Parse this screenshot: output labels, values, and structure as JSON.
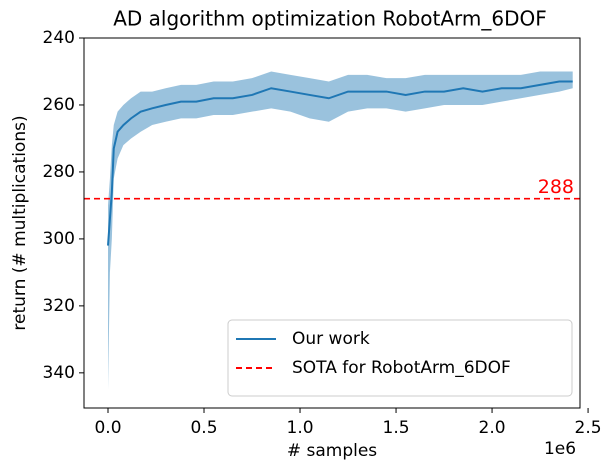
{
  "chart_data": {
    "type": "line",
    "title": "AD algorithm optimization RobotArm_6DOF",
    "xlabel": "# samples",
    "ylabel": "return (# multiplications)",
    "x_offset_label": "1e6",
    "x": [
      0,
      10000,
      20000,
      30000,
      50000,
      80000,
      120000,
      170000,
      230000,
      300000,
      380000,
      460000,
      550000,
      650000,
      750000,
      850000,
      950000,
      1050000,
      1150000,
      1250000,
      1350000,
      1450000,
      1550000,
      1650000,
      1750000,
      1850000,
      1950000,
      2050000,
      2150000,
      2250000,
      2350000,
      2420000
    ],
    "series": [
      {
        "name": "Our work",
        "color": "#1f77b4",
        "values": [
          302,
          294,
          286,
          273,
          268,
          266,
          264,
          262,
          261,
          260,
          259,
          259,
          258,
          258,
          257,
          255,
          256,
          257,
          258,
          256,
          256,
          256,
          257,
          256,
          256,
          255,
          256,
          255,
          255,
          254,
          253,
          253
        ],
        "band_lower": [
          345,
          310,
          300,
          282,
          276,
          272,
          270,
          268,
          266,
          265,
          264,
          264,
          263,
          263,
          262,
          261,
          262,
          264,
          265,
          262,
          261,
          261,
          262,
          261,
          260,
          260,
          260,
          259,
          258,
          257,
          256,
          255
        ],
        "band_upper": [
          290,
          282,
          272,
          266,
          262,
          260,
          258,
          256,
          256,
          255,
          254,
          254,
          253,
          253,
          252,
          250,
          251,
          252,
          253,
          251,
          251,
          252,
          252,
          251,
          251,
          251,
          251,
          251,
          251,
          250,
          250,
          250
        ]
      }
    ],
    "hlines": [
      {
        "name": "SOTA for RobotArm_6DOF",
        "value": 288,
        "color": "#ff0000",
        "dash": "6,4"
      }
    ],
    "xlim": [
      -125000,
      2458000
    ],
    "xticks": [
      {
        "value": 0,
        "label": "0.0"
      },
      {
        "value": 500000,
        "label": "0.5"
      },
      {
        "value": 1000000,
        "label": "1.0"
      },
      {
        "value": 1500000,
        "label": "1.5"
      },
      {
        "value": 2000000,
        "label": "2.0"
      },
      {
        "value": 2500000,
        "label": "2.5"
      }
    ],
    "ylim": [
      350.5,
      240
    ],
    "yticks": [
      240,
      260,
      280,
      300,
      320,
      340
    ],
    "legend": "lower right"
  }
}
